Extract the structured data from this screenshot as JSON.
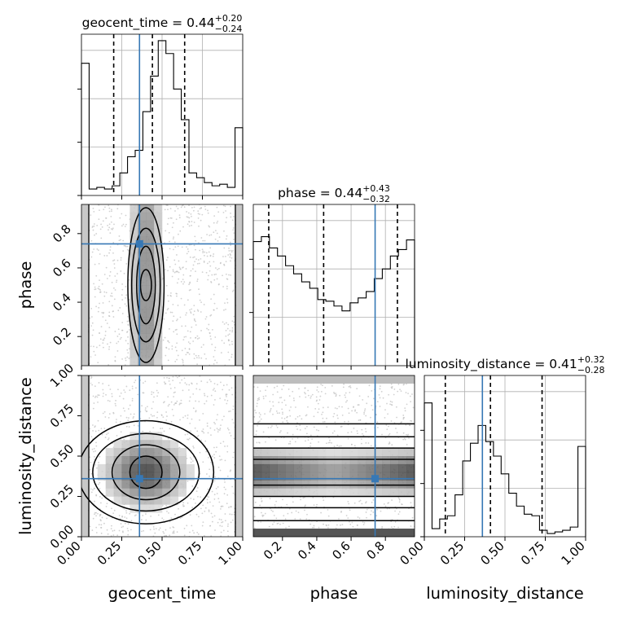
{
  "chart_data": {
    "type": "corner",
    "truth_color": "#3778b5",
    "parameters": [
      {
        "name": "geocent_time",
        "xlabel": "geocent_time",
        "ylabel": "",
        "title_text": "geocent_time = 0.44",
        "title_sup": "+0.20",
        "title_sub": "−0.24",
        "range": [
          0.0,
          1.0
        ],
        "ticks": [
          0.0,
          0.25,
          0.5,
          0.75,
          1.0
        ],
        "tick_labels": [
          "0.00",
          "0.25",
          "0.50",
          "0.75",
          "1.00"
        ],
        "truth": 0.36,
        "quantiles": [
          0.2,
          0.44,
          0.64
        ],
        "hist": [
          0.82,
          0.04,
          0.05,
          0.04,
          0.06,
          0.14,
          0.24,
          0.28,
          0.52,
          0.74,
          0.96,
          0.88,
          0.66,
          0.47,
          0.14,
          0.11,
          0.08,
          0.06,
          0.07,
          0.05,
          0.42
        ]
      },
      {
        "name": "phase",
        "xlabel": "phase",
        "ylabel": "phase",
        "title_text": "phase = 0.44",
        "title_sup": "+0.43",
        "title_sub": "−0.32",
        "range": [
          0.03,
          0.97
        ],
        "ticks": [
          0.2,
          0.4,
          0.6,
          0.8
        ],
        "tick_labels": [
          "0.2",
          "0.4",
          "0.6",
          "0.8"
        ],
        "truth": 0.74,
        "quantiles": [
          0.12,
          0.44,
          0.87
        ],
        "hist": [
          0.77,
          0.8,
          0.73,
          0.68,
          0.62,
          0.57,
          0.52,
          0.48,
          0.41,
          0.4,
          0.37,
          0.34,
          0.39,
          0.42,
          0.46,
          0.54,
          0.6,
          0.68,
          0.72,
          0.78
        ]
      },
      {
        "name": "luminosity_distance",
        "xlabel": "luminosity_distance",
        "ylabel": "luminosity_distance",
        "title_text": "luminosity_distance = 0.41",
        "title_sup": "+0.32",
        "title_sub": "−0.28",
        "range": [
          0.0,
          1.0
        ],
        "ticks": [
          0.0,
          0.25,
          0.5,
          0.75,
          1.0
        ],
        "tick_labels": [
          "0.00",
          "0.25",
          "0.50",
          "0.75",
          "1.00"
        ],
        "truth": 0.36,
        "quantiles": [
          0.13,
          0.41,
          0.73
        ],
        "hist": [
          0.83,
          0.05,
          0.11,
          0.13,
          0.26,
          0.47,
          0.58,
          0.69,
          0.59,
          0.5,
          0.39,
          0.27,
          0.19,
          0.14,
          0.13,
          0.04,
          0.02,
          0.03,
          0.04,
          0.06,
          0.56
        ]
      }
    ],
    "pairs": [
      {
        "x": "geocent_time",
        "y": "phase",
        "shape": "column",
        "center": [
          0.4,
          0.5
        ],
        "levels": [
          [
            0.33,
            0.3
          ],
          [
            0.26,
            0.22
          ],
          [
            0.17,
            0.15
          ],
          [
            0.1,
            0.06
          ]
        ],
        "edge_bands": true
      },
      {
        "x": "geocent_time",
        "y": "luminosity_distance",
        "shape": "ellipse",
        "center": [
          0.4,
          0.4
        ],
        "levels": [
          [
            0.42,
            0.32
          ],
          [
            0.33,
            0.24
          ],
          [
            0.21,
            0.17
          ],
          [
            0.1,
            0.1
          ]
        ],
        "edge_bands": true
      },
      {
        "x": "phase",
        "y": "luminosity_distance",
        "shape": "band",
        "center": [
          0.5,
          0.4
        ],
        "levels": [
          [
            0.5,
            0.3
          ],
          [
            0.5,
            0.22
          ],
          [
            0.5,
            0.15
          ],
          [
            0.5,
            0.08
          ]
        ],
        "edge_bands": true
      }
    ]
  }
}
